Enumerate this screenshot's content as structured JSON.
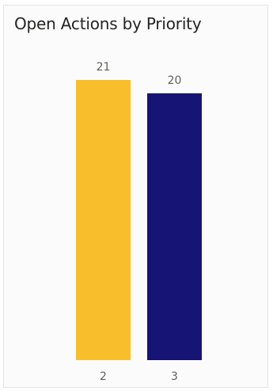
{
  "chart_data": {
    "type": "bar",
    "title": "Open Actions by Priority",
    "categories": [
      "2",
      "3"
    ],
    "values": [
      21,
      20
    ],
    "colors": [
      "#F9BE2B",
      "#161475"
    ],
    "xlabel": "",
    "ylabel": "",
    "ylim": [
      0,
      21
    ],
    "grid": false,
    "legend": "none",
    "data_labels": true
  }
}
